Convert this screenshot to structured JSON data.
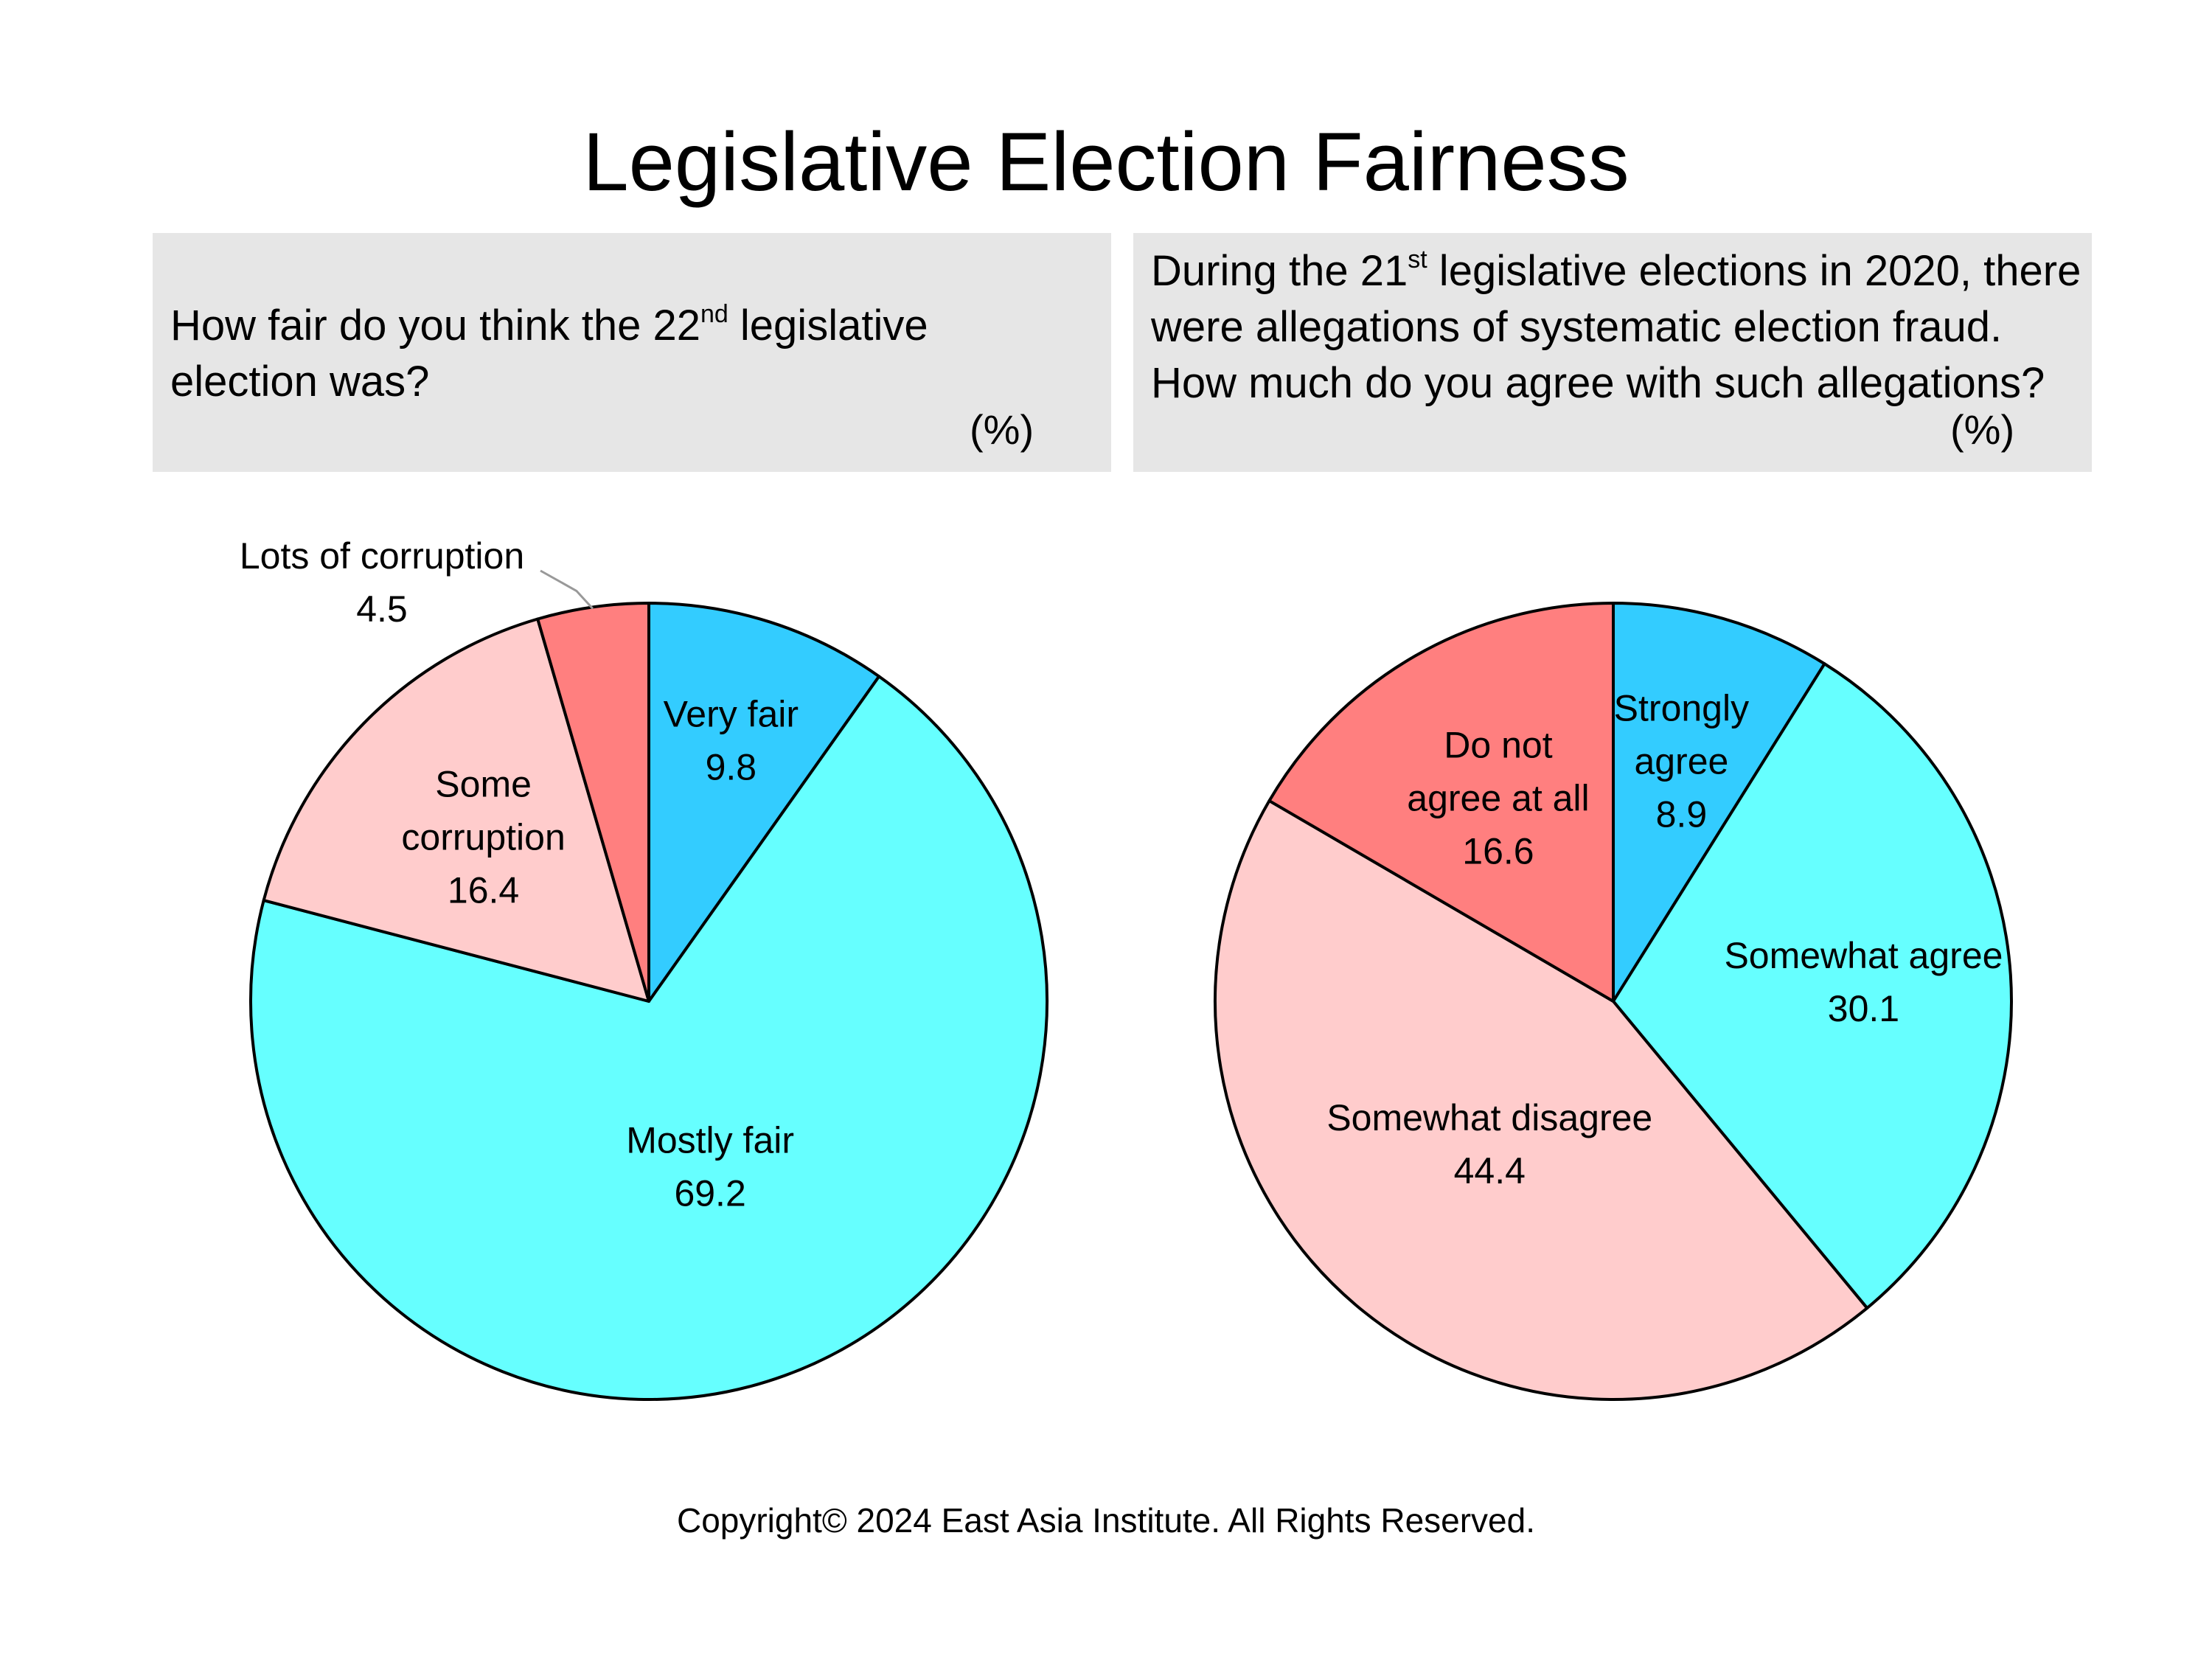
{
  "title": "Legislative Election Fairness",
  "questions": [
    {
      "before": "How fair do you think the 22",
      "sup": "nd",
      "after": " legislative election was?",
      "unit": "(%)"
    },
    {
      "before": "During the 21",
      "sup": "st",
      "after": " legislative elections in 2020, there were allegations of systematic election fraud. How much do you agree with such allegations?",
      "unit": "(%)"
    }
  ],
  "chart_data": [
    {
      "type": "pie",
      "start_angle_deg": 0,
      "direction": "clockwise",
      "slices": [
        {
          "label": [
            "Very fair"
          ],
          "value": 9.8,
          "color": "#33ccff"
        },
        {
          "label": [
            "Mostly fair"
          ],
          "value": 69.2,
          "color": "#66ffff"
        },
        {
          "label": [
            "Some",
            "corruption"
          ],
          "value": 16.4,
          "color": "#ffcccc"
        },
        {
          "label": [
            "Lots of corruption"
          ],
          "value": 4.5,
          "color": "#ff7f7f",
          "callout": true
        }
      ]
    },
    {
      "type": "pie",
      "start_angle_deg": 0,
      "direction": "clockwise",
      "slices": [
        {
          "label": [
            "Strongly",
            "agree"
          ],
          "value": 8.9,
          "color": "#33ccff"
        },
        {
          "label": [
            "Somewhat agree"
          ],
          "value": 30.1,
          "color": "#66ffff"
        },
        {
          "label": [
            "Somewhat disagree"
          ],
          "value": 44.4,
          "color": "#ffcccc"
        },
        {
          "label": [
            "Do not",
            "agree at all"
          ],
          "value": 16.6,
          "color": "#ff7f7f"
        }
      ]
    }
  ],
  "copyright": "Copyright© 2024 East Asia Institute. All Rights Reserved."
}
